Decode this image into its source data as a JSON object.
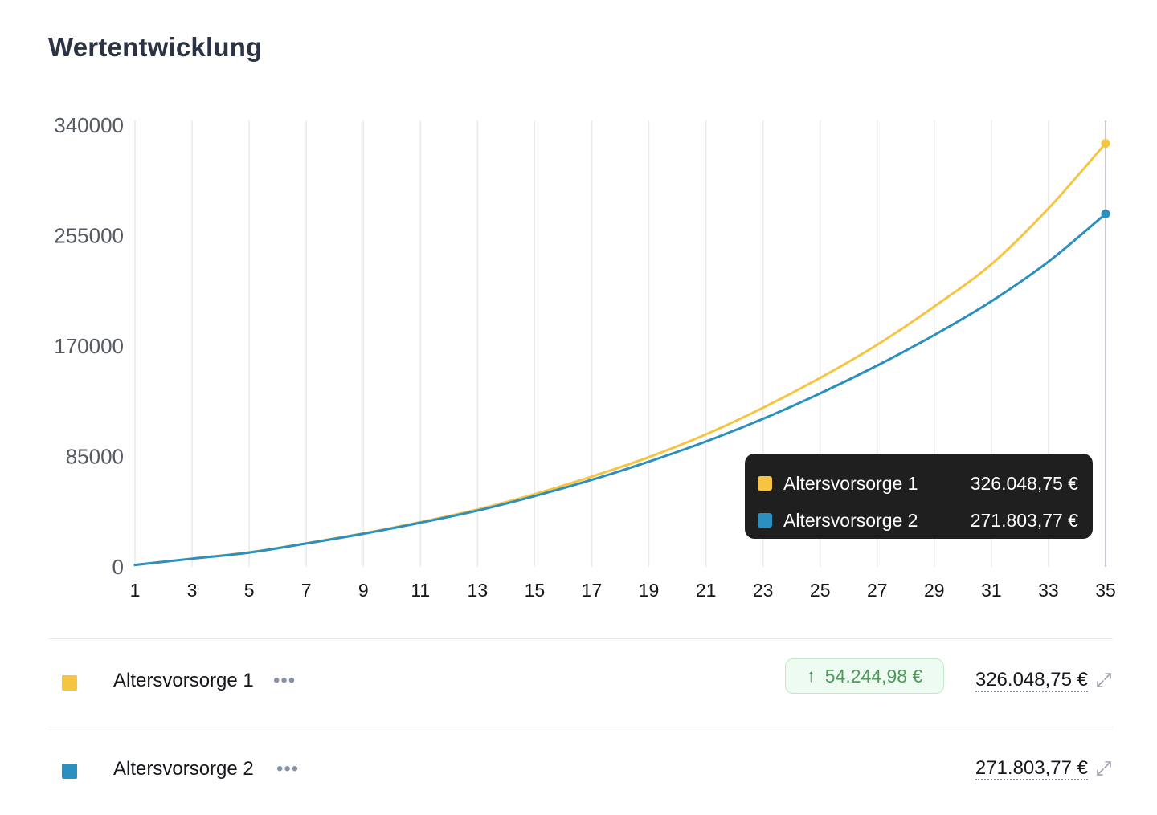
{
  "title": "Wertentwicklung",
  "chart_data": {
    "type": "line",
    "x_ticks": [
      1,
      3,
      5,
      7,
      9,
      11,
      13,
      15,
      17,
      19,
      21,
      23,
      25,
      27,
      29,
      31,
      33,
      35
    ],
    "x_range": [
      1,
      35
    ],
    "y_ticks": [
      0,
      85000,
      170000,
      255000,
      340000
    ],
    "ylim": [
      0,
      340000
    ],
    "grid": "vertical",
    "series": [
      {
        "name": "Altersvorsorge 1",
        "color": "#f5c542",
        "x": [
          1,
          3,
          5,
          7,
          9,
          11,
          13,
          15,
          17,
          19,
          21,
          23,
          25,
          27,
          29,
          31,
          33,
          35
        ],
        "values": [
          1500,
          6300,
          11200,
          18200,
          25800,
          34500,
          44200,
          56000,
          69500,
          84500,
          102000,
          122500,
          145500,
          171000,
          200500,
          233000,
          276000,
          326048.75
        ]
      },
      {
        "name": "Altersvorsorge 2",
        "color": "#2b8fc0",
        "x": [
          1,
          3,
          5,
          7,
          9,
          11,
          13,
          15,
          17,
          19,
          21,
          23,
          25,
          27,
          29,
          31,
          33,
          35
        ],
        "values": [
          1500,
          6300,
          11000,
          18000,
          25500,
          34000,
          43300,
          54500,
          67000,
          81000,
          96500,
          114000,
          133500,
          155000,
          178500,
          204500,
          235000,
          271803.77
        ]
      }
    ]
  },
  "tooltip": {
    "items": [
      {
        "name": "Altersvorsorge 1",
        "value": "326.048,75 €",
        "color": "#f5c542"
      },
      {
        "name": "Altersvorsorge 2",
        "value": "271.803,77 €",
        "color": "#2b8fc0"
      }
    ]
  },
  "legend": [
    {
      "name": "Altersvorsorge 1",
      "color": "#f5c542",
      "dots": "•••",
      "badge": "54.244,98 €",
      "badge_arrow": "↑",
      "value": "326.048,75 €"
    },
    {
      "name": "Altersvorsorge 2",
      "color": "#2b8fc0",
      "dots": "•••",
      "value": "271.803,77 €"
    }
  ]
}
